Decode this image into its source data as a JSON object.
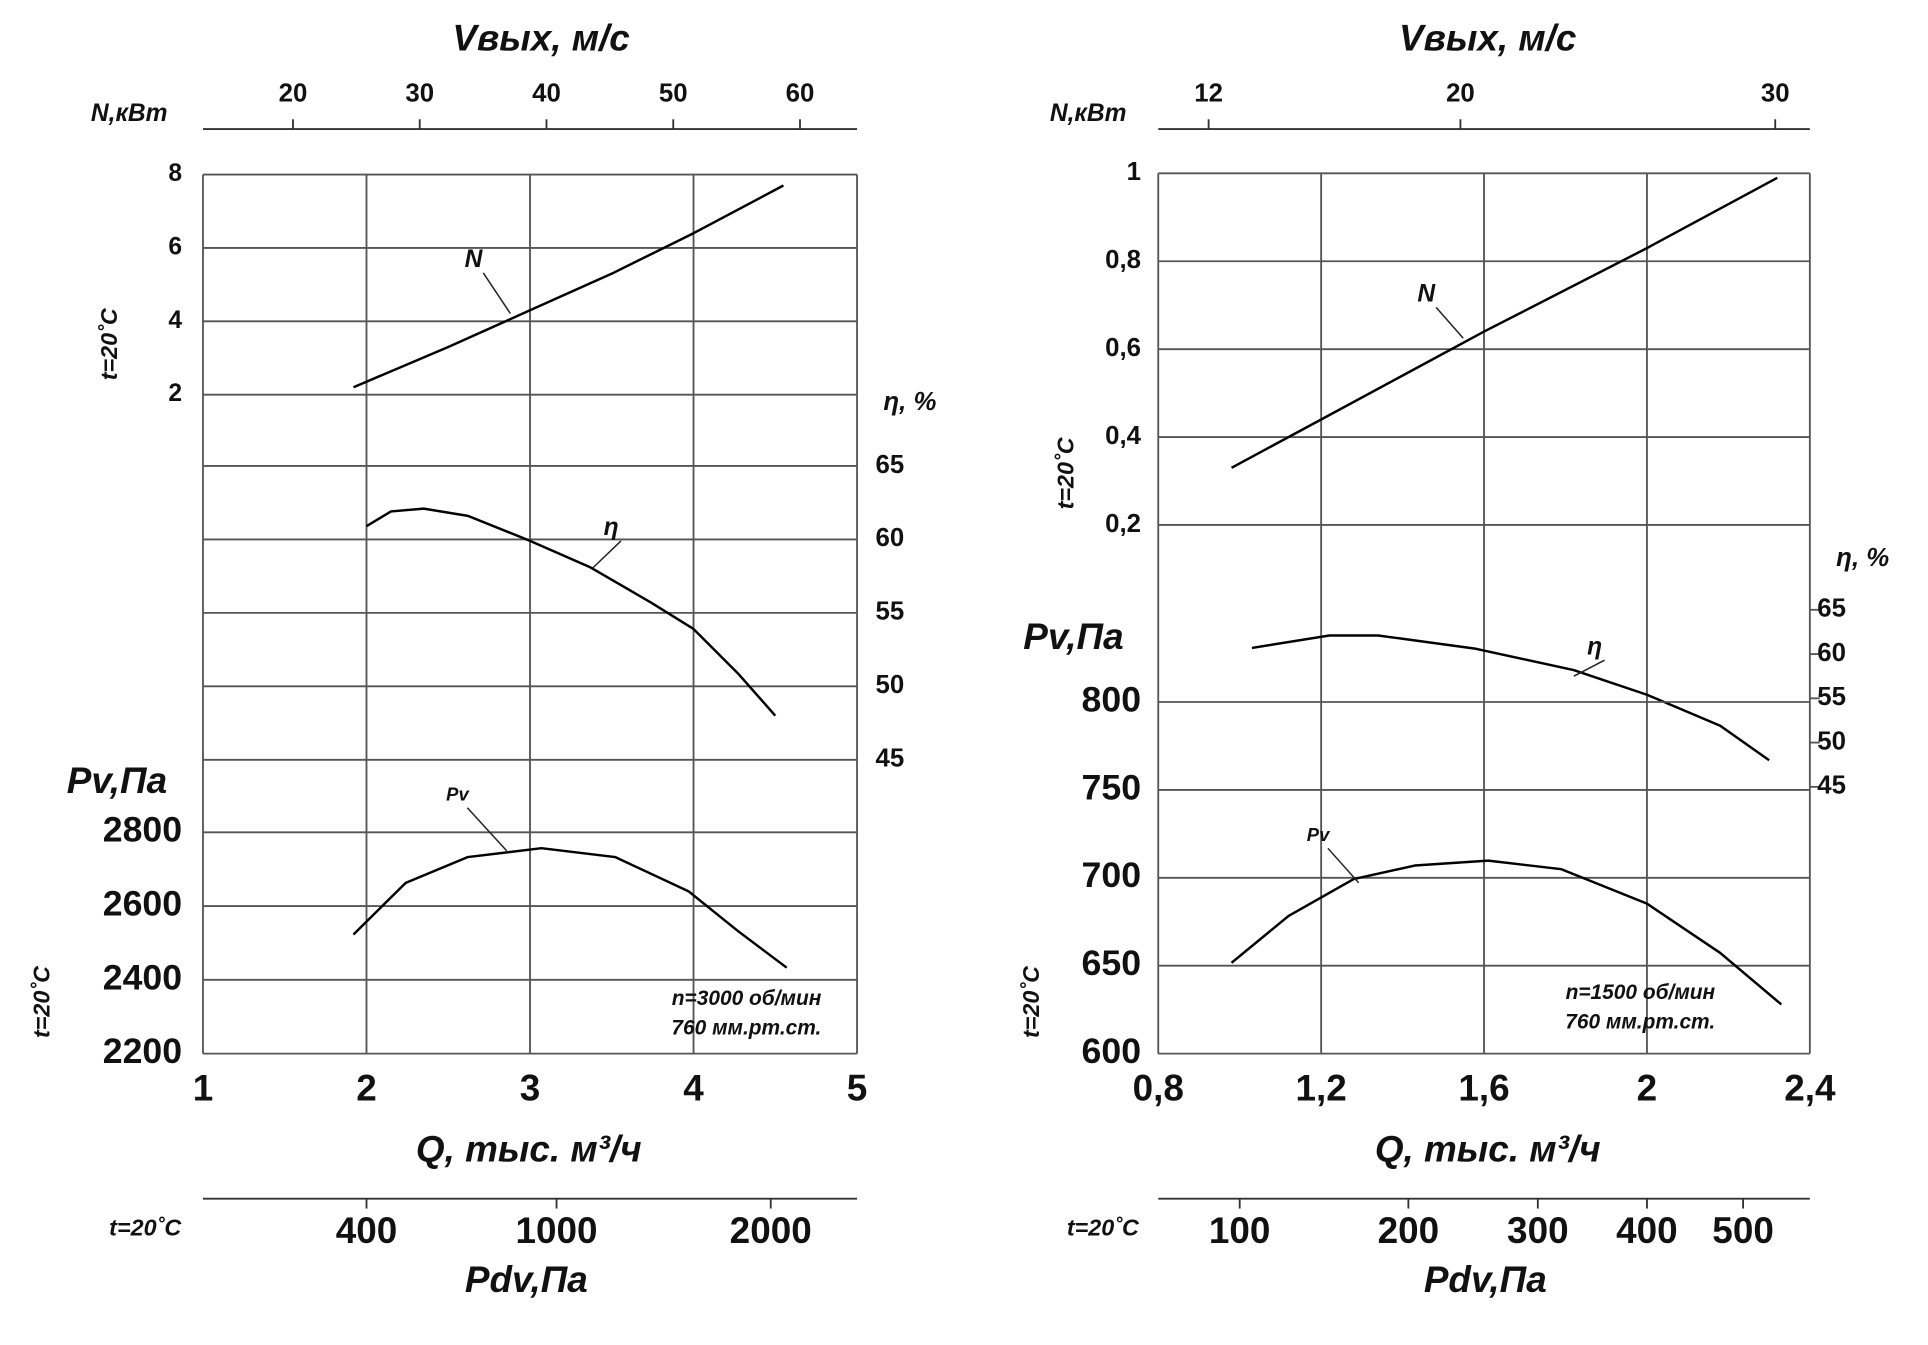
{
  "chart_data": [
    {
      "type": "line",
      "grid": true,
      "x_title": "Q, тыс. м³/ч",
      "xlim": [
        1,
        5
      ],
      "xticks": [
        1,
        2,
        3,
        4,
        5
      ],
      "top_axis": {
        "title": "Vвых, м/с",
        "xlim": [
          12.9,
          64.5
        ],
        "xticks": [
          20,
          30,
          40,
          50,
          60
        ]
      },
      "bottom_axis": {
        "title": "Pdv,Па",
        "label": "t=20˚C",
        "scale": "sqrt",
        "xlim": [
          100,
          2500
        ],
        "xticks": [
          400,
          1000,
          2000
        ]
      },
      "y_axes": [
        {
          "title": "N,кВт",
          "side_label": "t=20˚C",
          "grid": true,
          "ylim": [
            2,
            8
          ],
          "yticks": [
            2,
            4,
            6,
            8
          ],
          "series": {
            "name": "N",
            "color": "#000000",
            "x": [
              1.92,
              2.5,
              3,
              3.5,
              4,
              4.55
            ],
            "values": [
              2.2,
              3.3,
              4.3,
              5.3,
              6.4,
              7.7
            ]
          }
        },
        {
          "title": "η, %",
          "grid": true,
          "ylim": [
            45,
            65
          ],
          "yticks": [
            45,
            50,
            55,
            60,
            65
          ],
          "series": {
            "name": "η",
            "color": "#000000",
            "x": [
              2.0,
              2.15,
              2.35,
              2.62,
              3.0,
              3.37,
              3.74,
              4.0,
              4.27,
              4.5
            ],
            "values": [
              60.9,
              61.9,
              62.1,
              61.6,
              59.9,
              58.1,
              55.7,
              53.9,
              50.9,
              48.0
            ]
          }
        },
        {
          "title": "Pv,Па",
          "side_label": "t=20˚C",
          "grid": true,
          "ylim": [
            2200,
            2800
          ],
          "yticks": [
            2200,
            2400,
            2600,
            2800
          ],
          "series": {
            "name": "Pv",
            "color": "#000000",
            "x": [
              1.92,
              2.24,
              2.62,
              3.07,
              3.52,
              3.97,
              4.27,
              4.57
            ],
            "values": [
              2523,
              2663,
              2733,
              2757,
              2733,
              2640,
              2533,
              2433
            ]
          }
        }
      ],
      "notes": [
        "n=3000 об/мин",
        "760 мм.рт.ст."
      ]
    },
    {
      "type": "line",
      "grid": true,
      "x_title": "Q, тыс. м³/ч",
      "xlim": [
        0.8,
        2.4
      ],
      "xticks": [
        {
          "value": 0.8,
          "label": "0,8"
        },
        {
          "value": 1.2,
          "label": "1,2"
        },
        {
          "value": 1.6,
          "label": "1,6"
        },
        2,
        {
          "value": 2.4,
          "label": "2,4"
        }
      ],
      "top_axis": {
        "title": "Vвых, м/с",
        "xlim": [
          10.4,
          31.1
        ],
        "xticks": [
          12,
          20,
          30
        ]
      },
      "bottom_axis": {
        "title": "Pdv,Па",
        "label": "t=20˚C",
        "scale": "sqrt",
        "xlim": [
          64,
          576
        ],
        "xticks": [
          100,
          200,
          300,
          400,
          500
        ]
      },
      "y_axes": [
        {
          "title": "N,кВт",
          "side_label": "t=20˚C",
          "grid": true,
          "ylim": [
            0.2,
            1
          ],
          "yticks": [
            {
              "value": 0.2,
              "label": "0,2"
            },
            {
              "value": 0.4,
              "label": "0,4"
            },
            {
              "value": 0.6,
              "label": "0,6"
            },
            {
              "value": 0.8,
              "label": "0,8"
            },
            1
          ],
          "series": {
            "name": "N",
            "color": "#000000",
            "x": [
              0.98,
              1.2,
              1.6,
              2.0,
              2.32
            ],
            "values": [
              0.33,
              0.44,
              0.64,
              0.83,
              0.99
            ]
          }
        },
        {
          "title": "η, %",
          "grid": false,
          "ylim": [
            45,
            65
          ],
          "yticks": [
            45,
            50,
            55,
            60,
            65
          ],
          "series": {
            "name": "η",
            "color": "#000000",
            "x": [
              1.03,
              1.22,
              1.34,
              1.58,
              1.82,
              2.0,
              2.18,
              2.3
            ],
            "values": [
              60.7,
              62.1,
              62.1,
              60.6,
              58.2,
              55.4,
              51.9,
              48.0
            ]
          }
        },
        {
          "title": "Pv,Па",
          "side_label": "t=20˚C",
          "grid": true,
          "ylim": [
            600,
            800
          ],
          "yticks": [
            600,
            650,
            700,
            750,
            800
          ],
          "series": {
            "name": "Pv",
            "color": "#000000",
            "x": [
              0.98,
              1.12,
              1.28,
              1.43,
              1.61,
              1.79,
              2.0,
              2.18,
              2.33
            ],
            "values": [
              651.7,
              678.3,
              699.3,
              707.0,
              709.8,
              704.9,
              685.3,
              657.3,
              628.0
            ]
          }
        }
      ],
      "notes": [
        "n=1500 об/мин",
        "760 мм.рт.ст."
      ]
    }
  ]
}
